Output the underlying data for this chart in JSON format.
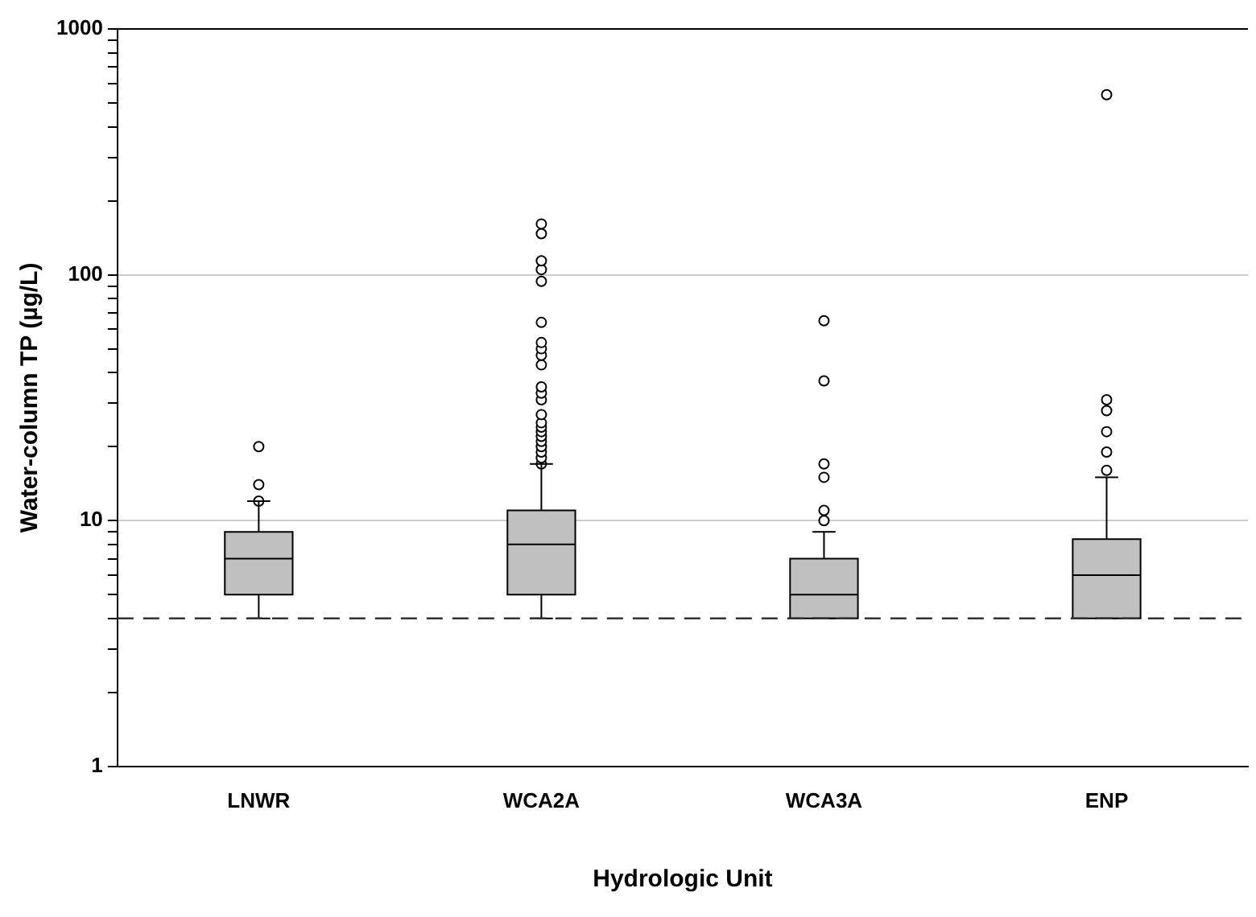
{
  "chart_data": {
    "type": "box",
    "xlabel": "Hydrologic Unit",
    "ylabel": "Water-column TP (µg/L)",
    "categories": [
      "LNWR",
      "WCA2A",
      "WCA3A",
      "ENP"
    ],
    "log": true,
    "ylim": [
      1,
      1000
    ],
    "yticks": [
      1,
      {
        "value": 2,
        "label": null
      },
      {
        "value": 3,
        "label": null
      },
      {
        "value": 4,
        "label": null
      },
      {
        "value": 5,
        "label": null
      },
      {
        "value": 6,
        "label": null
      },
      {
        "value": 7,
        "label": null
      },
      {
        "value": 8,
        "label": null
      },
      {
        "value": 9,
        "label": null
      },
      10,
      {
        "value": 20,
        "label": null
      },
      {
        "value": 30,
        "label": null
      },
      {
        "value": 40,
        "label": null
      },
      {
        "value": 50,
        "label": null
      },
      {
        "value": 60,
        "label": null
      },
      {
        "value": 70,
        "label": null
      },
      {
        "value": 80,
        "label": null
      },
      {
        "value": 90,
        "label": null
      },
      100,
      {
        "value": 200,
        "label": null
      },
      {
        "value": 300,
        "label": null
      },
      {
        "value": 400,
        "label": null
      },
      {
        "value": 500,
        "label": null
      },
      {
        "value": 600,
        "label": null
      },
      {
        "value": 700,
        "label": null
      },
      {
        "value": 800,
        "label": null
      },
      {
        "value": 900,
        "label": null
      },
      1000
    ],
    "grid": "y",
    "color": "#c0c0c0",
    "boxes": [
      {
        "low": 4,
        "q1": 5,
        "median": 7,
        "q3": 9,
        "high": 12,
        "outliers": [
          12,
          14,
          20
        ]
      },
      {
        "low": 4,
        "q1": 5,
        "median": 8,
        "q3": 11,
        "high": 17,
        "outliers": [
          17,
          18,
          19,
          20,
          21,
          22,
          23,
          24,
          25,
          27,
          31,
          33,
          35,
          43,
          47,
          50,
          53,
          64,
          94,
          105,
          114,
          147,
          161
        ]
      },
      {
        "low": 4,
        "q1": 4,
        "median": 5,
        "q3": 7,
        "high": 9,
        "outliers": [
          10,
          11,
          15,
          17,
          37,
          65
        ]
      },
      {
        "low": 4,
        "q1": 4,
        "median": 6,
        "q3": 8.4,
        "high": 15,
        "outliers": [
          16,
          19,
          23,
          28,
          31,
          540
        ]
      }
    ],
    "ref_lines": [
      {
        "axis": "y",
        "value": 4,
        "line_style": "dashed"
      }
    ]
  }
}
